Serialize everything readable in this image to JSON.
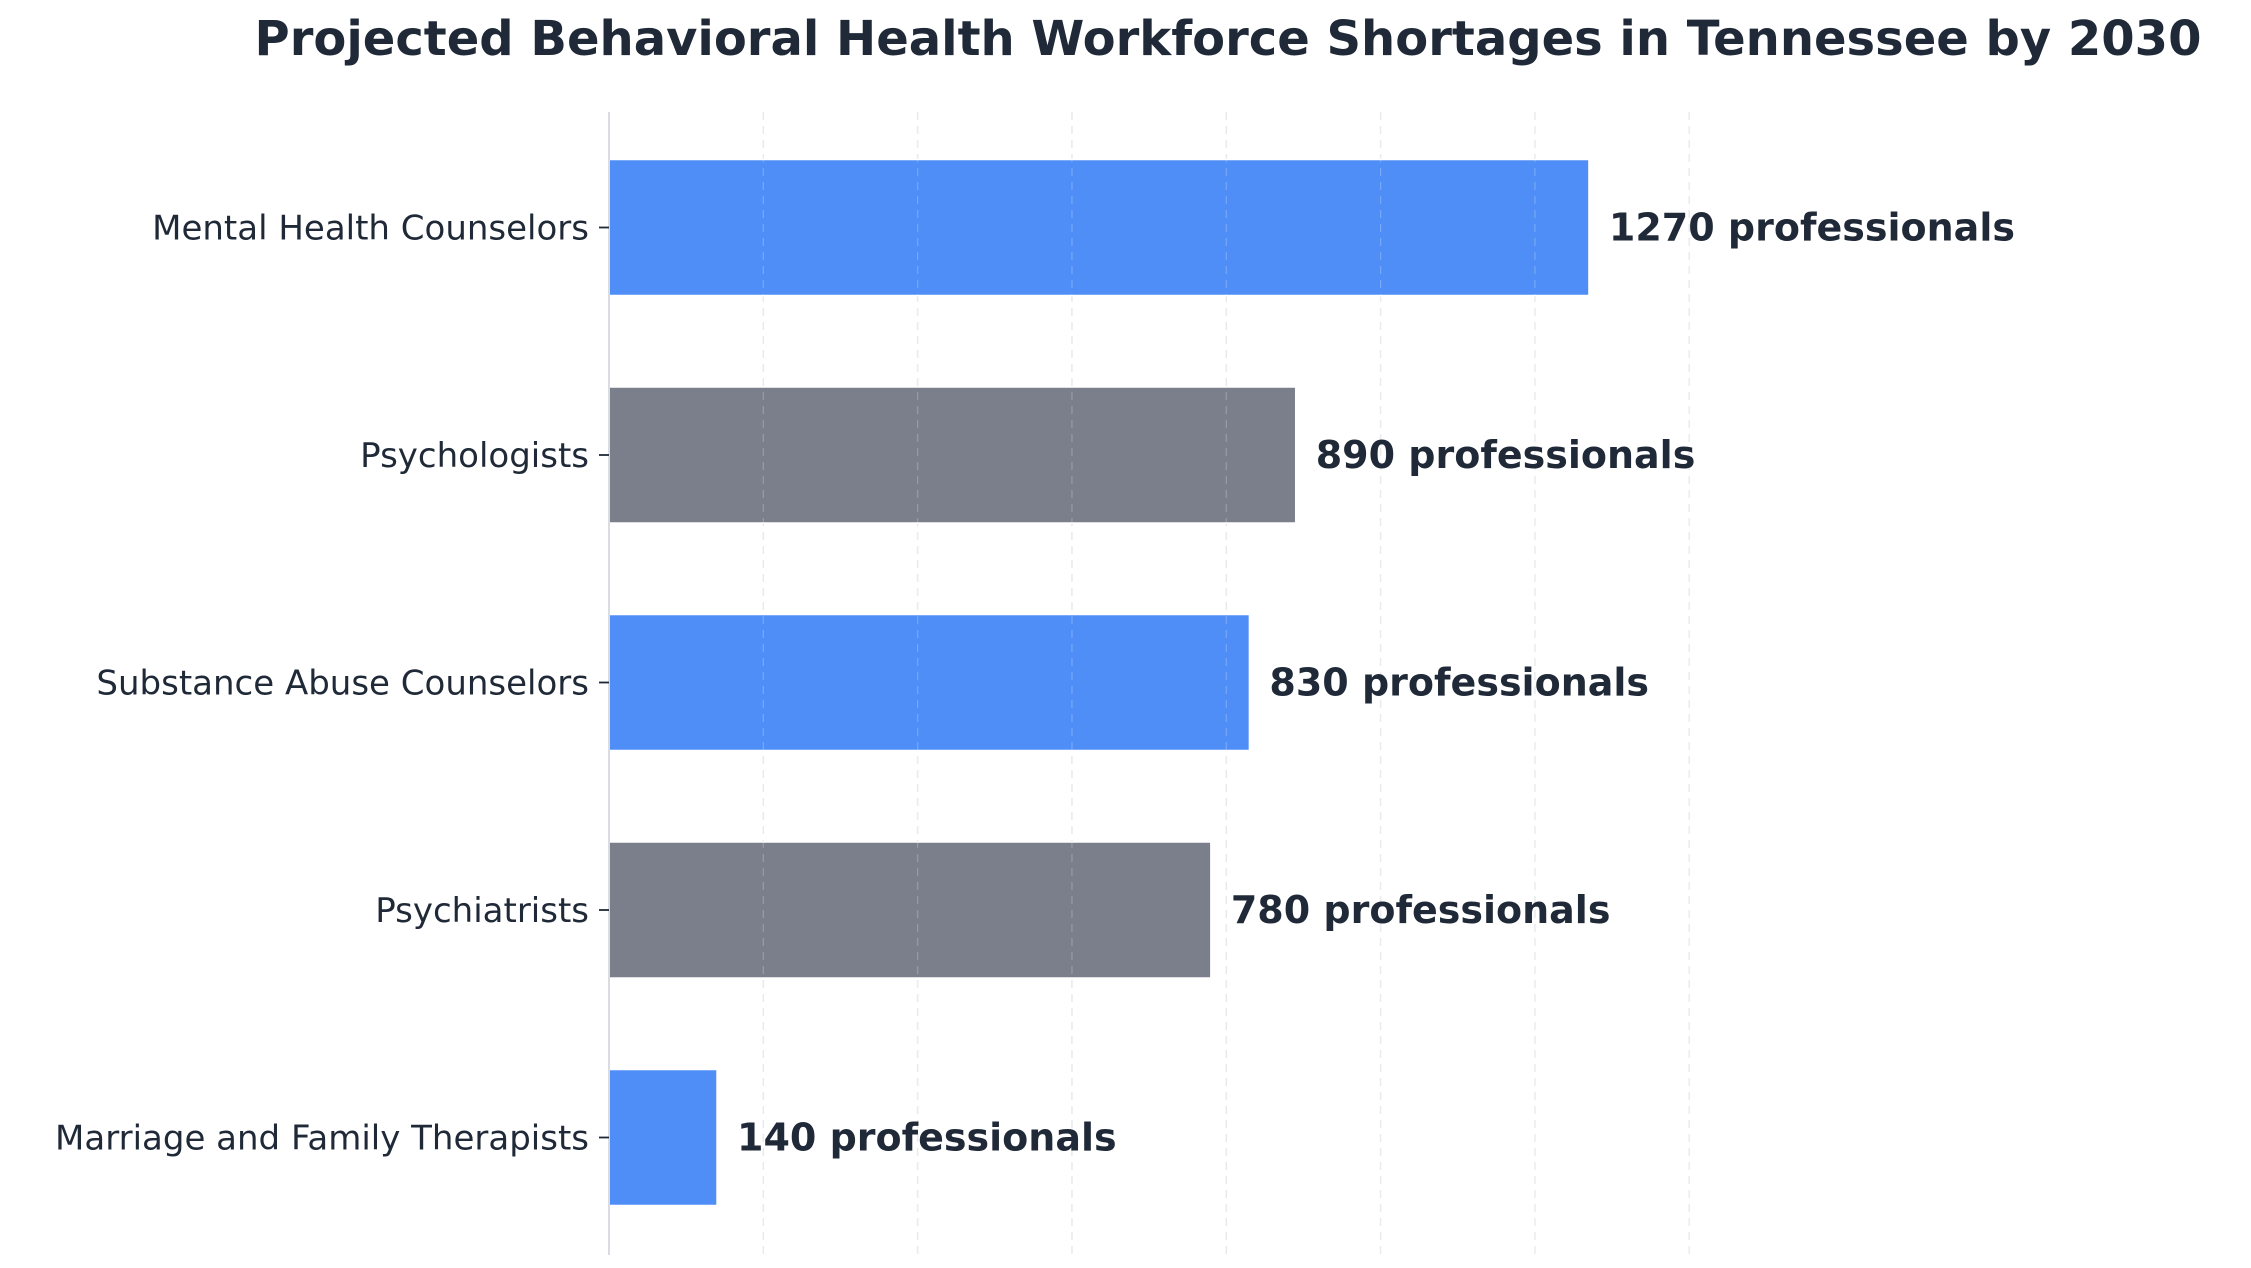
{
  "chart_data": {
    "type": "bar",
    "orientation": "horizontal",
    "title": "Projected Behavioral Health Workforce Shortages in Tennessee by 2030",
    "xlabel": "",
    "ylabel": "",
    "categories": [
      "Mental Health Counselors",
      "Psychologists",
      "Substance Abuse Counselors",
      "Psychiatrists",
      "Marriage and Family Therapists"
    ],
    "values": [
      1270,
      890,
      830,
      780,
      140
    ],
    "value_labels": [
      "1270 professionals",
      "890 professionals",
      "830 professionals",
      "780 professionals",
      "140 professionals"
    ],
    "bar_colors": [
      "#4f8ef7",
      "#7b7f8b",
      "#4f8ef7",
      "#7b7f8b",
      "#4f8ef7"
    ],
    "xlim": [
      0,
      1400
    ],
    "x_grid": true,
    "x_tick_labels_shown": false
  },
  "colors": {
    "text": "#1f2937",
    "accent_blue": "#4f8ef7",
    "accent_gray": "#7b7f8b",
    "grid": "#d4d7dd",
    "axis": "#d9dce1"
  }
}
